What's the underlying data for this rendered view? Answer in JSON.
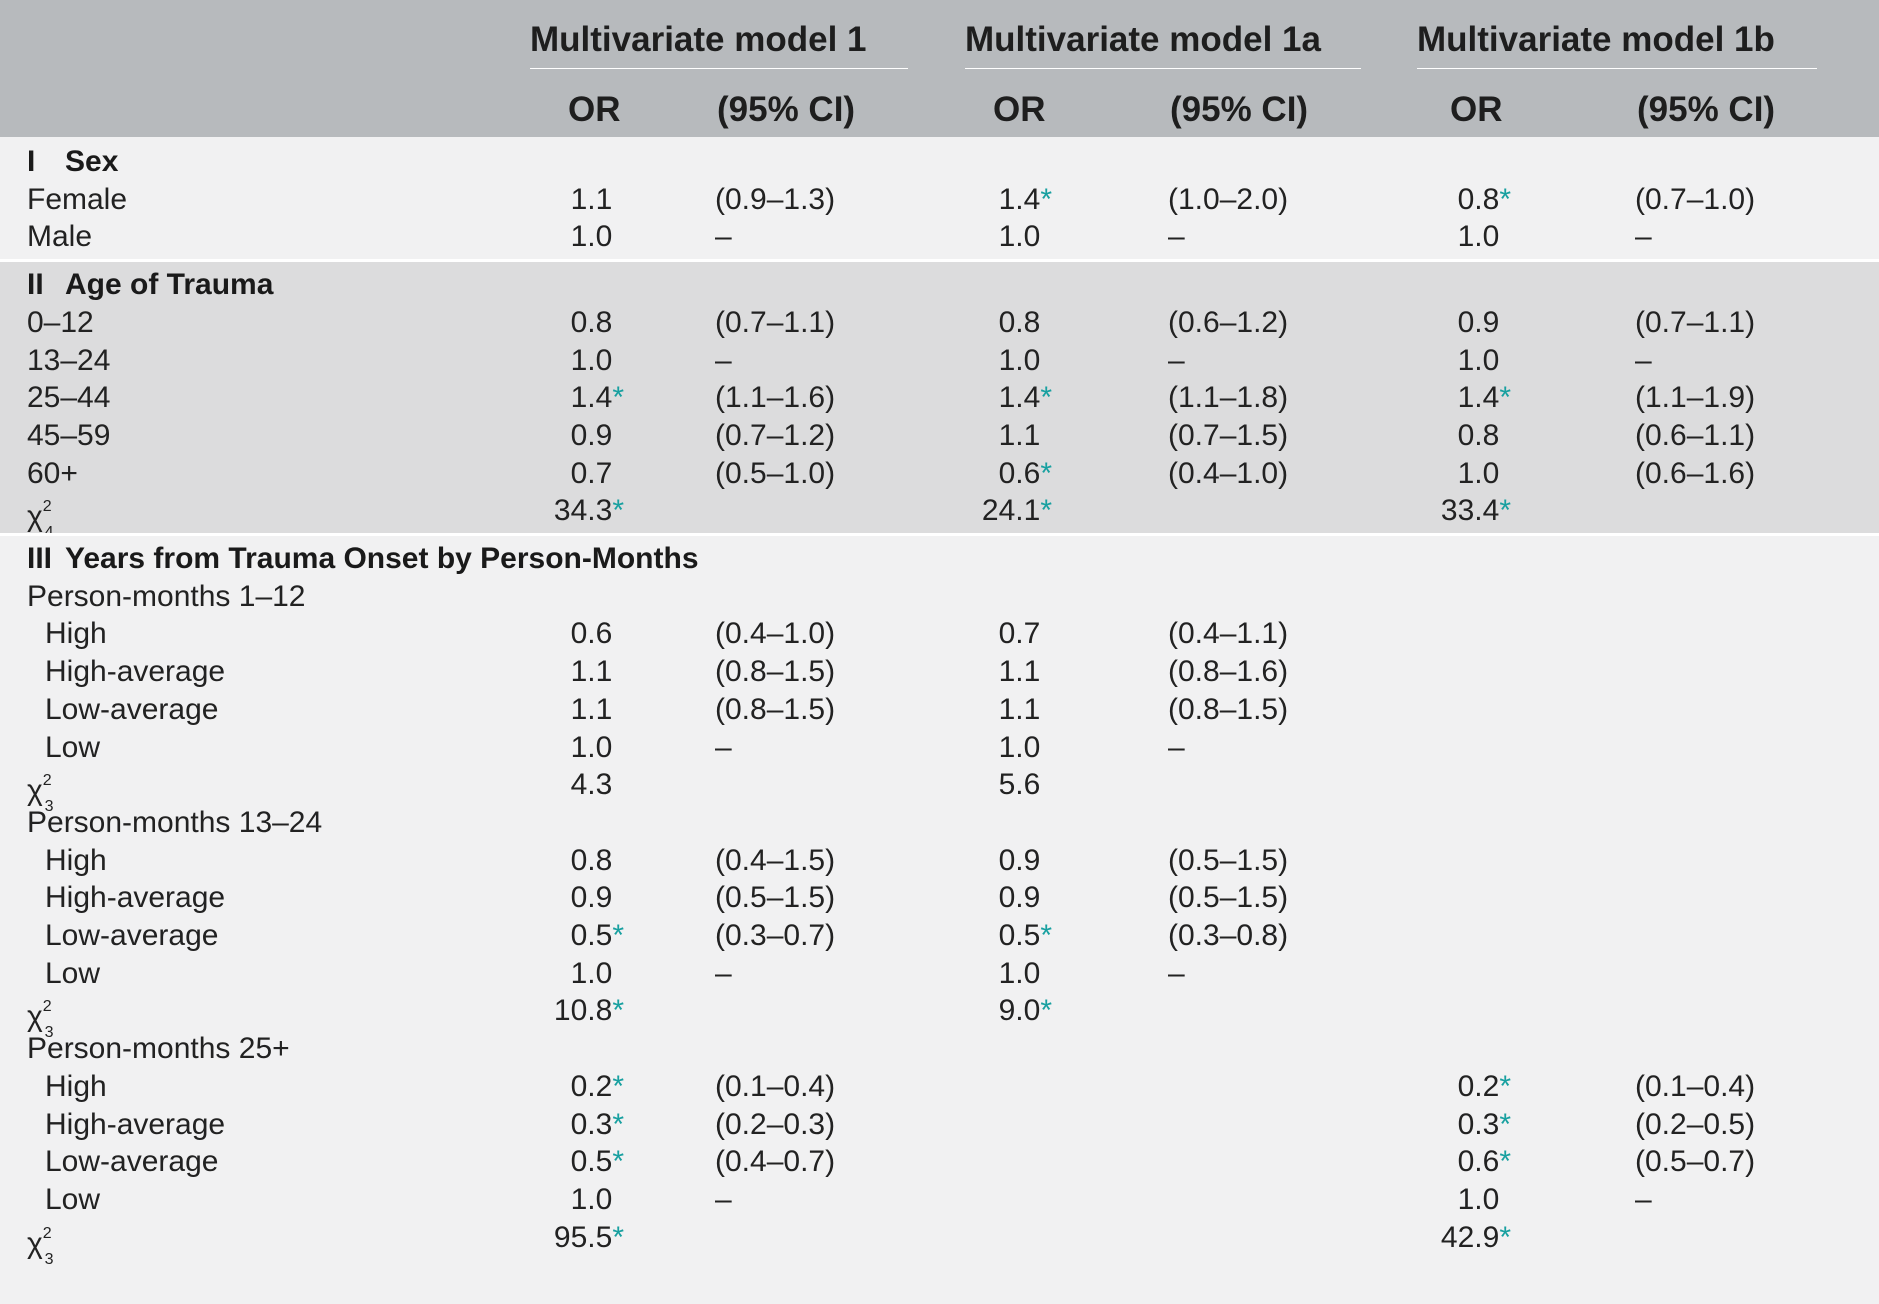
{
  "columns": {
    "models": [
      "Multivariate model 1",
      "Multivariate model 1a",
      "Multivariate model 1b"
    ],
    "or_label": "OR",
    "ci_label": "(95% CI)",
    "significance_marker": "*",
    "marker_color": "#18a0a0"
  },
  "sections": [
    {
      "numeral": "I",
      "title": "Sex",
      "rows": [
        {
          "label": "Female",
          "or1": "1.1",
          "ci1": "(0.9–1.3)",
          "or2": "1.4",
          "s2": true,
          "ci2": "(1.0–2.0)",
          "or3": "0.8",
          "s3": true,
          "ci3": "(0.7–1.0)"
        },
        {
          "label": "Male",
          "or1": "1.0",
          "ci1": "–",
          "or2": "1.0",
          "ci2": "–",
          "or3": "1.0",
          "ci3": "–"
        }
      ]
    },
    {
      "numeral": "II",
      "title": "Age of Trauma",
      "rows": [
        {
          "label": "0–12",
          "or1": "0.8",
          "ci1": "(0.7–1.1)",
          "or2": "0.8",
          "ci2": "(0.6–1.2)",
          "or3": "0.9",
          "ci3": "(0.7–1.1)"
        },
        {
          "label": "13–24",
          "or1": "1.0",
          "ci1": "–",
          "or2": "1.0",
          "ci2": "–",
          "or3": "1.0",
          "ci3": "–"
        },
        {
          "label": "25–44",
          "or1": "1.4",
          "s1": true,
          "ci1": "(1.1–1.6)",
          "or2": "1.4",
          "s2": true,
          "ci2": "(1.1–1.8)",
          "or3": "1.4",
          "s3": true,
          "ci3": "(1.1–1.9)"
        },
        {
          "label": "45–59",
          "or1": "0.9",
          "ci1": "(0.7–1.2)",
          "or2": "1.1",
          "ci2": "(0.7–1.5)",
          "or3": "0.8",
          "ci3": "(0.6–1.1)"
        },
        {
          "label": "60+",
          "or1": "0.7",
          "ci1": "(0.5–1.0)",
          "or2": "0.6",
          "s2": true,
          "ci2": "(0.4–1.0)",
          "or3": "1.0",
          "ci3": "(0.6–1.6)"
        },
        {
          "chi": true,
          "chi_label": "χ",
          "chi_sup": "2",
          "chi_sub": "4",
          "or1": "34.3",
          "s1": true,
          "or2": "24.1",
          "s2": true,
          "or3": "33.4",
          "s3": true
        }
      ]
    },
    {
      "numeral": "III",
      "title": "Years from Trauma Onset by Person-Months",
      "rows": [
        {
          "label": "Person-months 1–12",
          "group": true
        },
        {
          "label": "High",
          "indent": true,
          "or1": "0.6",
          "ci1": "(0.4–1.0)",
          "or2": "0.7",
          "ci2": "(0.4–1.1)"
        },
        {
          "label": "High-average",
          "indent": true,
          "or1": "1.1",
          "ci1": "(0.8–1.5)",
          "or2": "1.1",
          "ci2": "(0.8–1.6)"
        },
        {
          "label": "Low-average",
          "indent": true,
          "or1": "1.1",
          "ci1": "(0.8–1.5)",
          "or2": "1.1",
          "ci2": "(0.8–1.5)"
        },
        {
          "label": "Low",
          "indent": true,
          "or1": "1.0",
          "ci1": "–",
          "or2": "1.0",
          "ci2": "–"
        },
        {
          "chi": true,
          "chi_label": "χ",
          "chi_sup": "2",
          "chi_sub": "3",
          "or1": "4.3",
          "or2": "5.6"
        },
        {
          "label": "Person-months 13–24",
          "group": true
        },
        {
          "label": "High",
          "indent": true,
          "or1": "0.8",
          "ci1": "(0.4–1.5)",
          "or2": "0.9",
          "ci2": "(0.5–1.5)"
        },
        {
          "label": "High-average",
          "indent": true,
          "or1": "0.9",
          "ci1": "(0.5–1.5)",
          "or2": "0.9",
          "ci2": "(0.5–1.5)"
        },
        {
          "label": "Low-average",
          "indent": true,
          "or1": "0.5",
          "s1": true,
          "ci1": "(0.3–0.7)",
          "or2": "0.5",
          "s2": true,
          "ci2": "(0.3–0.8)"
        },
        {
          "label": "Low",
          "indent": true,
          "or1": "1.0",
          "ci1": "–",
          "or2": "1.0",
          "ci2": "–"
        },
        {
          "chi": true,
          "chi_label": "χ",
          "chi_sup": "2",
          "chi_sub": "3",
          "or1": "10.8",
          "s1": true,
          "or2": "9.0",
          "s2": true
        },
        {
          "label": "Person-months 25+",
          "group": true
        },
        {
          "label": "High",
          "indent": true,
          "or1": "0.2",
          "s1": true,
          "ci1": "(0.1–0.4)",
          "or3": "0.2",
          "s3": true,
          "ci3": "(0.1–0.4)"
        },
        {
          "label": "High-average",
          "indent": true,
          "or1": "0.3",
          "s1": true,
          "ci1": "(0.2–0.3)",
          "or3": "0.3",
          "s3": true,
          "ci3": "(0.2–0.5)"
        },
        {
          "label": "Low-average",
          "indent": true,
          "or1": "0.5",
          "s1": true,
          "ci1": "(0.4–0.7)",
          "or3": "0.6",
          "s3": true,
          "ci3": "(0.5–0.7)"
        },
        {
          "label": "Low",
          "indent": true,
          "or1": "1.0",
          "ci1": "–",
          "or3": "1.0",
          "ci3": "–"
        },
        {
          "chi": true,
          "chi_label": "χ",
          "chi_sup": "2",
          "chi_sub": "3",
          "or1": "95.5",
          "s1": true,
          "or3": "42.9",
          "s3": true
        }
      ]
    }
  ]
}
